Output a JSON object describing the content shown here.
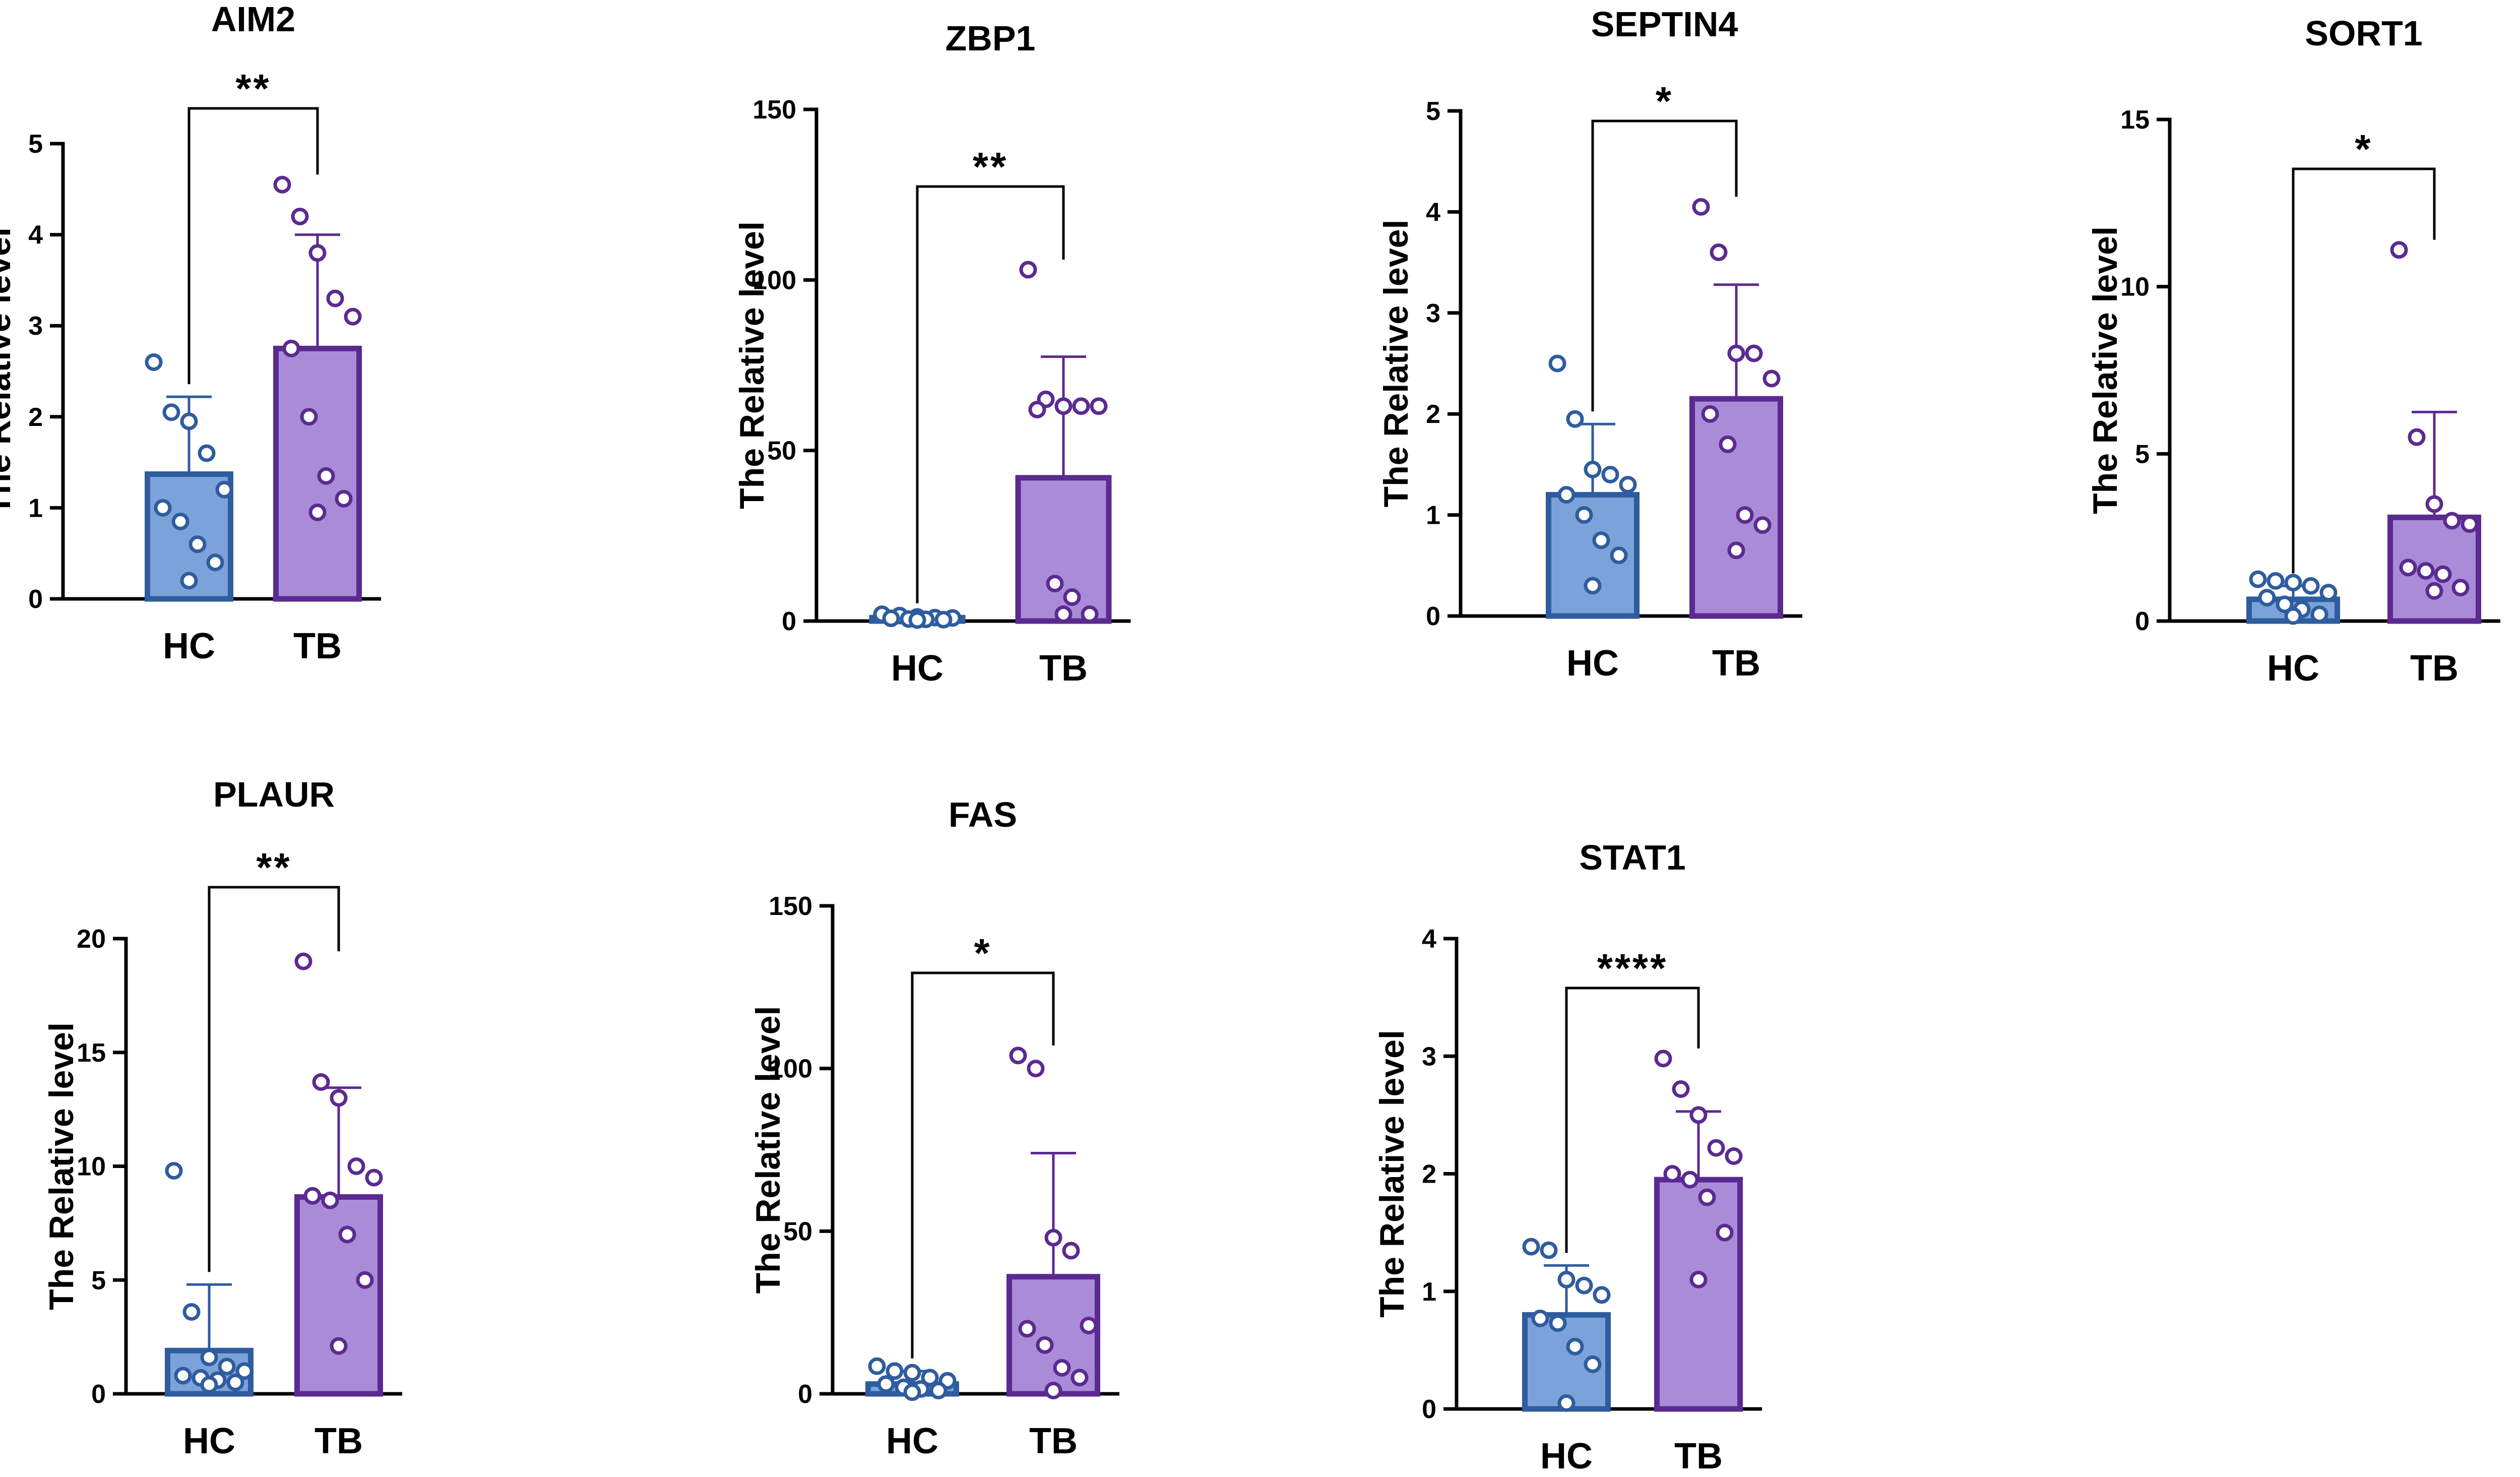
{
  "figure": {
    "colors": {
      "hc_fill": "#7BA3D9",
      "hc_edge": "#2E5C9E",
      "tb_fill": "#A98BD8",
      "tb_edge": "#5B2A91",
      "axis": "#000000"
    }
  },
  "chart_data": [
    {
      "type": "bar",
      "title": "AIM2",
      "ylabel": "The Relative level",
      "xlabel": "",
      "categories": [
        "HC",
        "TB"
      ],
      "ylim": [
        0,
        5
      ],
      "yticks": [
        "0",
        "1",
        "2",
        "3",
        "4",
        "5"
      ],
      "values": [
        1.37,
        2.75
      ],
      "error": [
        0.85,
        1.25
      ],
      "points": [
        [
          2.6,
          2.05,
          1.95,
          1.6,
          1.2,
          1.0,
          0.85,
          0.6,
          0.4,
          0.2
        ],
        [
          4.55,
          4.2,
          3.8,
          3.3,
          3.1,
          2.75,
          2.0,
          1.35,
          1.1,
          0.95
        ]
      ],
      "significance": "**"
    },
    {
      "type": "bar",
      "title": "ZBP1",
      "ylabel": "The Relative level",
      "xlabel": "",
      "categories": [
        "HC",
        "TB"
      ],
      "ylim": [
        0,
        150
      ],
      "yticks": [
        "0",
        "50",
        "100",
        "150"
      ],
      "values": [
        1.0,
        42.0
      ],
      "error": [
        0.5,
        35.5
      ],
      "points": [
        [
          2.0,
          1.6,
          1.2,
          1.0,
          0.9,
          0.8,
          0.6,
          0.5,
          0.4,
          0.3
        ],
        [
          103,
          65,
          63,
          63,
          63,
          62,
          11,
          7,
          2,
          2
        ]
      ],
      "significance": "**"
    },
    {
      "type": "bar",
      "title": "SEPTIN4",
      "ylabel": "The Relative level",
      "xlabel": "",
      "categories": [
        "HC",
        "TB"
      ],
      "ylim": [
        0,
        5
      ],
      "yticks": [
        "0",
        "1",
        "2",
        "3",
        "4",
        "5"
      ],
      "values": [
        1.2,
        2.15
      ],
      "error": [
        0.7,
        1.13
      ],
      "points": [
        [
          2.5,
          1.95,
          1.45,
          1.4,
          1.3,
          1.2,
          1.0,
          0.75,
          0.6,
          0.3
        ],
        [
          4.05,
          3.6,
          2.6,
          2.6,
          2.35,
          2.0,
          1.7,
          1.0,
          0.9,
          0.65
        ]
      ],
      "significance": "*"
    },
    {
      "type": "bar",
      "title": "SORT1",
      "ylabel": "The Relative level",
      "xlabel": "",
      "categories": [
        "HC",
        "TB"
      ],
      "ylim": [
        0,
        15
      ],
      "yticks": [
        "0",
        "5",
        "10",
        "15"
      ],
      "values": [
        0.65,
        3.1
      ],
      "error": [
        0.4,
        3.15
      ],
      "points": [
        [
          1.25,
          1.2,
          1.15,
          1.05,
          0.85,
          0.7,
          0.5,
          0.35,
          0.2,
          0.15
        ],
        [
          11.1,
          5.5,
          3.5,
          3.0,
          2.9,
          1.6,
          1.5,
          1.4,
          1.0,
          0.9
        ]
      ],
      "significance": "*"
    },
    {
      "type": "bar",
      "title": "PLAUR",
      "ylabel": "The Relative level",
      "xlabel": "",
      "categories": [
        "HC",
        "TB"
      ],
      "ylim": [
        0,
        20
      ],
      "yticks": [
        "0",
        "5",
        "10",
        "15",
        "20"
      ],
      "values": [
        1.9,
        8.65
      ],
      "error": [
        2.9,
        4.8
      ],
      "points": [
        [
          9.8,
          3.6,
          1.6,
          1.2,
          1.0,
          0.8,
          0.7,
          0.6,
          0.5,
          0.4
        ],
        [
          19.0,
          13.7,
          13.0,
          10.0,
          9.5,
          8.7,
          8.5,
          7.0,
          5.0,
          2.1
        ]
      ],
      "significance": "**"
    },
    {
      "type": "bar",
      "title": "FAS",
      "ylabel": "The Relative level",
      "xlabel": "",
      "categories": [
        "HC",
        "TB"
      ],
      "ylim": [
        0,
        150
      ],
      "yticks": [
        "0",
        "50",
        "100",
        "150"
      ],
      "values": [
        3.0,
        36.0
      ],
      "error": [
        4.0,
        38.0
      ],
      "points": [
        [
          8.5,
          7.0,
          6.5,
          5.0,
          4.0,
          3.0,
          2.0,
          1.5,
          1.0,
          0.5
        ],
        [
          104,
          100,
          48,
          44,
          21,
          20,
          15,
          8,
          5,
          1
        ]
      ],
      "significance": "*"
    },
    {
      "type": "bar",
      "title": "STAT1",
      "ylabel": "The Relative level",
      "xlabel": "",
      "categories": [
        "HC",
        "TB"
      ],
      "ylim": [
        0,
        4
      ],
      "yticks": [
        "0",
        "1",
        "2",
        "3",
        "4"
      ],
      "values": [
        0.8,
        1.95
      ],
      "error": [
        0.42,
        0.58
      ],
      "points": [
        [
          1.38,
          1.35,
          1.1,
          1.05,
          0.97,
          0.77,
          0.73,
          0.53,
          0.38,
          0.05
        ],
        [
          2.98,
          2.72,
          2.5,
          2.22,
          2.15,
          2.0,
          1.95,
          1.8,
          1.5,
          1.1
        ]
      ],
      "significance": "****"
    }
  ]
}
